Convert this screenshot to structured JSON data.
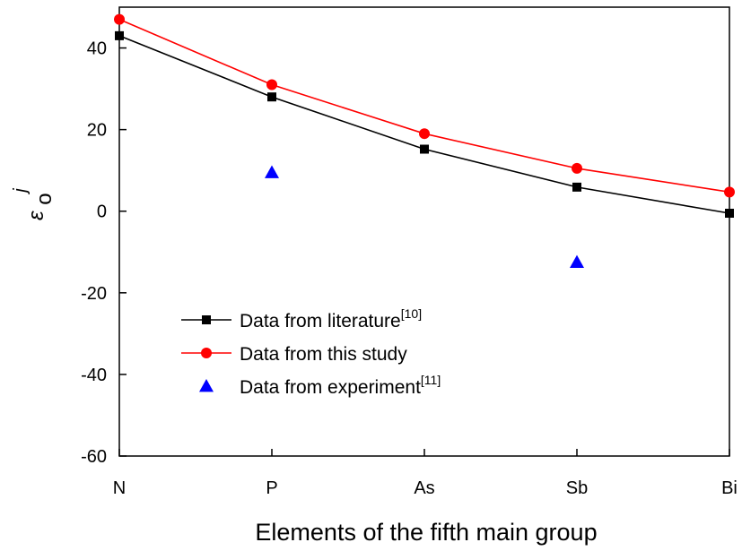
{
  "chart_data": {
    "type": "line",
    "categories": [
      "N",
      "P",
      "As",
      "Sb",
      "Bi"
    ],
    "ylim": [
      -60,
      50
    ],
    "yticks": [
      -60,
      -40,
      -20,
      0,
      20,
      40
    ],
    "xlabel": "Elements of the fifth main group",
    "ylabel": {
      "base": "ε",
      "sub": "o",
      "sup": "j"
    },
    "grid": false,
    "legend_position": "lower-left",
    "series": [
      {
        "name": "Data from literature",
        "ref": "[10]",
        "marker": "square",
        "color": "#000000",
        "line": true,
        "values": [
          43,
          28,
          15.2,
          5.9,
          -0.5
        ]
      },
      {
        "name": "Data from this study",
        "ref": "",
        "marker": "circle",
        "color": "#ff0000",
        "line": true,
        "values": [
          47,
          31,
          19,
          10.5,
          4.7
        ]
      },
      {
        "name": "Data from experiment",
        "ref": "[11]",
        "marker": "triangle",
        "color": "#0000ff",
        "line": false,
        "values": [
          null,
          9.5,
          null,
          -12.5,
          null
        ]
      }
    ]
  }
}
